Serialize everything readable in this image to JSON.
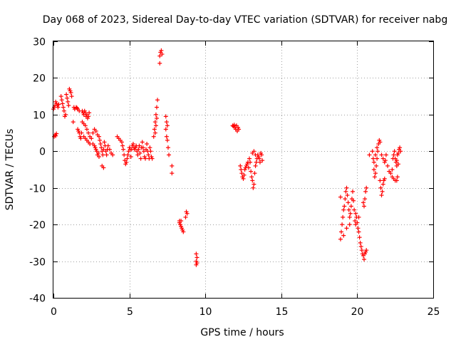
{
  "chart_data": {
    "type": "scatter",
    "title": "Day 068 of 2023, Sidereal Day-to-day VTEC variation (SDTVAR) for receiver nabg",
    "xlabel": "GPS time / hours",
    "ylabel": "SDTVAR / TECUs",
    "xlim": [
      0,
      25
    ],
    "ylim": [
      -40,
      30
    ],
    "xticks": [
      0,
      5,
      10,
      15,
      20,
      25
    ],
    "yticks": [
      -40,
      -30,
      -20,
      -10,
      0,
      10,
      20,
      30
    ],
    "grid": true,
    "marker": "+",
    "color": "#ff0000",
    "series": [
      {
        "name": "SDTVAR",
        "points": [
          [
            0.0,
            11.5
          ],
          [
            0.05,
            12.0
          ],
          [
            0.1,
            12.5
          ],
          [
            0.15,
            13.5
          ],
          [
            0.2,
            13.0
          ],
          [
            0.25,
            12.5
          ],
          [
            0.3,
            12.0
          ],
          [
            0.35,
            12.8
          ],
          [
            0.05,
            4.0
          ],
          [
            0.1,
            4.5
          ],
          [
            0.15,
            4.2
          ],
          [
            0.2,
            4.8
          ],
          [
            0.5,
            15.0
          ],
          [
            0.55,
            14.0
          ],
          [
            0.6,
            13.0
          ],
          [
            0.65,
            12.0
          ],
          [
            0.7,
            11.0
          ],
          [
            0.75,
            9.5
          ],
          [
            0.8,
            10.0
          ],
          [
            0.85,
            15.5
          ],
          [
            0.9,
            14.5
          ],
          [
            0.95,
            13.5
          ],
          [
            1.0,
            12.5
          ],
          [
            1.05,
            17.0
          ],
          [
            1.1,
            16.5
          ],
          [
            1.15,
            16.0
          ],
          [
            1.2,
            15.0
          ],
          [
            1.3,
            8.0
          ],
          [
            1.35,
            12.0
          ],
          [
            1.4,
            11.5
          ],
          [
            1.5,
            12.0
          ],
          [
            1.55,
            11.8
          ],
          [
            1.6,
            11.5
          ],
          [
            1.7,
            11.0
          ],
          [
            1.6,
            6.0
          ],
          [
            1.65,
            5.5
          ],
          [
            1.7,
            5.0
          ],
          [
            1.75,
            4.0
          ],
          [
            1.8,
            3.5
          ],
          [
            1.85,
            5.0
          ],
          [
            1.9,
            11.0
          ],
          [
            1.95,
            10.5
          ],
          [
            2.0,
            10.0
          ],
          [
            2.05,
            11.0
          ],
          [
            2.1,
            10.5
          ],
          [
            2.15,
            9.5
          ],
          [
            2.2,
            10.0
          ],
          [
            2.25,
            9.0
          ],
          [
            2.3,
            9.5
          ],
          [
            2.35,
            10.5
          ],
          [
            1.9,
            8.0
          ],
          [
            2.0,
            7.5
          ],
          [
            2.1,
            7.0
          ],
          [
            2.2,
            6.0
          ],
          [
            2.3,
            5.0
          ],
          [
            2.4,
            4.0
          ],
          [
            2.5,
            3.5
          ],
          [
            2.0,
            4.0
          ],
          [
            2.1,
            3.5
          ],
          [
            2.2,
            3.0
          ],
          [
            2.3,
            2.5
          ],
          [
            2.4,
            2.0
          ],
          [
            2.6,
            2.0
          ],
          [
            2.7,
            1.5
          ],
          [
            2.75,
            1.0
          ],
          [
            2.8,
            0.5
          ],
          [
            2.85,
            0.0
          ],
          [
            2.9,
            -1.0
          ],
          [
            2.95,
            -0.5
          ],
          [
            3.0,
            -1.5
          ],
          [
            2.6,
            5.0
          ],
          [
            2.7,
            6.0
          ],
          [
            2.8,
            5.5
          ],
          [
            2.9,
            4.5
          ],
          [
            3.0,
            4.0
          ],
          [
            3.05,
            3.0
          ],
          [
            3.1,
            2.0
          ],
          [
            3.15,
            1.0
          ],
          [
            3.2,
            0.0
          ],
          [
            3.25,
            -1.0
          ],
          [
            3.3,
            0.5
          ],
          [
            3.35,
            2.5
          ],
          [
            3.4,
            1.5
          ],
          [
            3.45,
            0.0
          ],
          [
            3.5,
            -1.0
          ],
          [
            3.55,
            0.5
          ],
          [
            3.6,
            1.5
          ],
          [
            3.7,
            0.5
          ],
          [
            3.8,
            -0.5
          ],
          [
            3.9,
            -1.0
          ],
          [
            3.3,
            -4.5
          ],
          [
            3.2,
            -4.0
          ],
          [
            4.2,
            4.0
          ],
          [
            4.3,
            3.5
          ],
          [
            4.4,
            3.0
          ],
          [
            4.5,
            2.5
          ],
          [
            4.55,
            1.5
          ],
          [
            4.6,
            0.5
          ],
          [
            4.65,
            -1.0
          ],
          [
            4.7,
            -2.5
          ],
          [
            4.75,
            -3.5
          ],
          [
            4.8,
            -3.0
          ],
          [
            4.85,
            -2.0
          ],
          [
            4.9,
            -1.0
          ],
          [
            4.95,
            0.0
          ],
          [
            5.0,
            1.0
          ],
          [
            5.05,
            0.5
          ],
          [
            5.1,
            -1.5
          ],
          [
            5.15,
            0.5
          ],
          [
            5.2,
            1.5
          ],
          [
            5.25,
            2.0
          ],
          [
            5.3,
            1.0
          ],
          [
            5.35,
            0.5
          ],
          [
            5.4,
            1.0
          ],
          [
            5.45,
            1.5
          ],
          [
            5.5,
            0.0
          ],
          [
            5.55,
            -1.0
          ],
          [
            5.6,
            0.5
          ],
          [
            5.65,
            1.5
          ],
          [
            5.7,
            -0.5
          ],
          [
            5.75,
            -2.0
          ],
          [
            5.8,
            1.0
          ],
          [
            5.85,
            2.5
          ],
          [
            5.9,
            1.0
          ],
          [
            5.95,
            0.0
          ],
          [
            6.0,
            -1.5
          ],
          [
            6.05,
            -2.0
          ],
          [
            6.1,
            0.5
          ],
          [
            6.15,
            2.0
          ],
          [
            6.2,
            0.0
          ],
          [
            6.25,
            -1.0
          ],
          [
            6.3,
            -2.0
          ],
          [
            6.35,
            1.0
          ],
          [
            6.4,
            0.0
          ],
          [
            6.45,
            -1.5
          ],
          [
            6.5,
            -2.0
          ],
          [
            6.6,
            4.0
          ],
          [
            6.65,
            6.0
          ],
          [
            6.7,
            8.0
          ],
          [
            6.75,
            10.0
          ],
          [
            6.8,
            12.0
          ],
          [
            6.85,
            14.0
          ],
          [
            6.8,
            9.0
          ],
          [
            6.75,
            7.0
          ],
          [
            6.7,
            5.0
          ],
          [
            7.0,
            26.0
          ],
          [
            7.05,
            27.0
          ],
          [
            7.1,
            27.5
          ],
          [
            7.15,
            26.5
          ],
          [
            7.0,
            24.0
          ],
          [
            7.4,
            9.5
          ],
          [
            7.45,
            8.0
          ],
          [
            7.5,
            7.0
          ],
          [
            7.4,
            6.0
          ],
          [
            7.45,
            4.0
          ],
          [
            7.5,
            3.0
          ],
          [
            7.55,
            1.0
          ],
          [
            7.6,
            -1.0
          ],
          [
            7.8,
            -4.0
          ],
          [
            7.8,
            -6.0
          ],
          [
            8.3,
            -19.5
          ],
          [
            8.35,
            -20.0
          ],
          [
            8.4,
            -20.5
          ],
          [
            8.45,
            -21.0
          ],
          [
            8.5,
            -21.5
          ],
          [
            8.55,
            -22.0
          ],
          [
            8.3,
            -19.0
          ],
          [
            8.4,
            -19.0
          ],
          [
            8.75,
            -16.5
          ],
          [
            8.8,
            -17.0
          ],
          [
            8.7,
            -18.0
          ],
          [
            9.4,
            -28.0
          ],
          [
            9.45,
            -29.0
          ],
          [
            9.4,
            -30.0
          ],
          [
            9.45,
            -30.5
          ],
          [
            9.4,
            -31.0
          ],
          [
            11.8,
            7.0
          ],
          [
            11.85,
            6.8
          ],
          [
            11.9,
            7.2
          ],
          [
            11.95,
            6.5
          ],
          [
            12.0,
            6.0
          ],
          [
            12.05,
            7.0
          ],
          [
            12.1,
            5.5
          ],
          [
            12.15,
            6.5
          ],
          [
            12.2,
            6.0
          ],
          [
            12.3,
            -4.0
          ],
          [
            12.35,
            -5.0
          ],
          [
            12.4,
            -6.0
          ],
          [
            12.45,
            -7.0
          ],
          [
            12.5,
            -7.5
          ],
          [
            12.55,
            -6.5
          ],
          [
            12.6,
            -5.0
          ],
          [
            12.65,
            -4.5
          ],
          [
            12.7,
            -4.0
          ],
          [
            12.75,
            -3.5
          ],
          [
            12.8,
            -3.0
          ],
          [
            12.85,
            -4.5
          ],
          [
            12.9,
            -2.0
          ],
          [
            12.95,
            -3.0
          ],
          [
            13.0,
            -5.5
          ],
          [
            13.05,
            -7.0
          ],
          [
            13.1,
            -8.0
          ],
          [
            13.15,
            -10.0
          ],
          [
            13.2,
            -9.0
          ],
          [
            13.25,
            -6.0
          ],
          [
            13.3,
            -4.0
          ],
          [
            13.35,
            -3.0
          ],
          [
            13.4,
            -2.0
          ],
          [
            13.45,
            -1.0
          ],
          [
            13.5,
            -1.5
          ],
          [
            13.55,
            -2.0
          ],
          [
            13.6,
            -3.0
          ],
          [
            13.65,
            -0.5
          ],
          [
            13.7,
            -1.0
          ],
          [
            13.75,
            -2.5
          ],
          [
            13.1,
            -0.5
          ],
          [
            13.2,
            0.0
          ],
          [
            13.3,
            -1.0
          ],
          [
            18.9,
            -24.0
          ],
          [
            18.95,
            -22.0
          ],
          [
            19.0,
            -20.0
          ],
          [
            19.05,
            -18.0
          ],
          [
            19.1,
            -16.0
          ],
          [
            19.15,
            -15.0
          ],
          [
            19.2,
            -13.0
          ],
          [
            18.9,
            -12.5
          ],
          [
            19.25,
            -11.0
          ],
          [
            19.3,
            -10.0
          ],
          [
            19.35,
            -12.0
          ],
          [
            19.4,
            -14.0
          ],
          [
            19.45,
            -16.0
          ],
          [
            19.5,
            -18.0
          ],
          [
            19.55,
            -17.0
          ],
          [
            19.6,
            -15.0
          ],
          [
            19.65,
            -13.0
          ],
          [
            19.7,
            -11.0
          ],
          [
            19.75,
            -13.5
          ],
          [
            19.8,
            -16.0
          ],
          [
            19.85,
            -19.0
          ],
          [
            19.9,
            -20.0
          ],
          [
            19.95,
            -18.0
          ],
          [
            20.0,
            -19.5
          ],
          [
            20.05,
            -21.0
          ],
          [
            20.1,
            -22.0
          ],
          [
            20.15,
            -23.5
          ],
          [
            20.2,
            -25.0
          ],
          [
            20.25,
            -26.0
          ],
          [
            20.3,
            -27.0
          ],
          [
            20.35,
            -28.0
          ],
          [
            20.4,
            -28.5
          ],
          [
            20.45,
            -29.5
          ],
          [
            20.5,
            -28.0
          ],
          [
            20.55,
            -27.5
          ],
          [
            20.6,
            -27.0
          ],
          [
            20.45,
            -15.0
          ],
          [
            20.5,
            -13.0
          ],
          [
            20.55,
            -11.0
          ],
          [
            20.6,
            -10.0
          ],
          [
            20.4,
            -14.0
          ],
          [
            19.1,
            -23.0
          ],
          [
            19.3,
            -21.0
          ],
          [
            19.5,
            -20.0
          ],
          [
            19.9,
            -17.0
          ],
          [
            20.1,
            -18.0
          ],
          [
            20.8,
            -1.0
          ],
          [
            21.0,
            0.0
          ],
          [
            21.05,
            -2.0
          ],
          [
            21.1,
            -5.0
          ],
          [
            21.15,
            -7.0
          ],
          [
            21.2,
            -6.0
          ],
          [
            21.25,
            -4.0
          ],
          [
            21.3,
            -2.0
          ],
          [
            21.35,
            0.0
          ],
          [
            21.4,
            2.0
          ],
          [
            21.45,
            3.0
          ],
          [
            21.5,
            2.5
          ],
          [
            21.3,
            1.0
          ],
          [
            21.2,
            -1.0
          ],
          [
            21.1,
            -3.0
          ],
          [
            21.5,
            -8.0
          ],
          [
            21.55,
            -10.0
          ],
          [
            21.6,
            -12.0
          ],
          [
            21.65,
            -11.0
          ],
          [
            21.7,
            -9.0
          ],
          [
            21.75,
            -8.0
          ],
          [
            21.8,
            -7.5
          ],
          [
            21.6,
            -1.0
          ],
          [
            21.7,
            -2.0
          ],
          [
            21.8,
            -3.0
          ],
          [
            21.85,
            -2.5
          ],
          [
            21.9,
            -1.0
          ],
          [
            22.0,
            -4.0
          ],
          [
            22.1,
            -5.5
          ],
          [
            22.2,
            -6.0
          ],
          [
            22.3,
            -5.0
          ],
          [
            22.35,
            -2.0
          ],
          [
            22.4,
            -1.0
          ],
          [
            22.45,
            0.0
          ],
          [
            22.5,
            -2.0
          ],
          [
            22.55,
            -3.0
          ],
          [
            22.6,
            -4.0
          ],
          [
            22.65,
            -1.0
          ],
          [
            22.7,
            -0.5
          ],
          [
            22.75,
            0.5
          ],
          [
            22.8,
            1.0
          ],
          [
            22.85,
            0.0
          ],
          [
            22.6,
            -2.5
          ],
          [
            22.7,
            -3.5
          ],
          [
            22.4,
            -7.5
          ],
          [
            22.5,
            -8.0
          ],
          [
            22.6,
            -8.0
          ],
          [
            22.65,
            -7.0
          ],
          [
            22.3,
            -7.0
          ]
        ]
      }
    ]
  }
}
